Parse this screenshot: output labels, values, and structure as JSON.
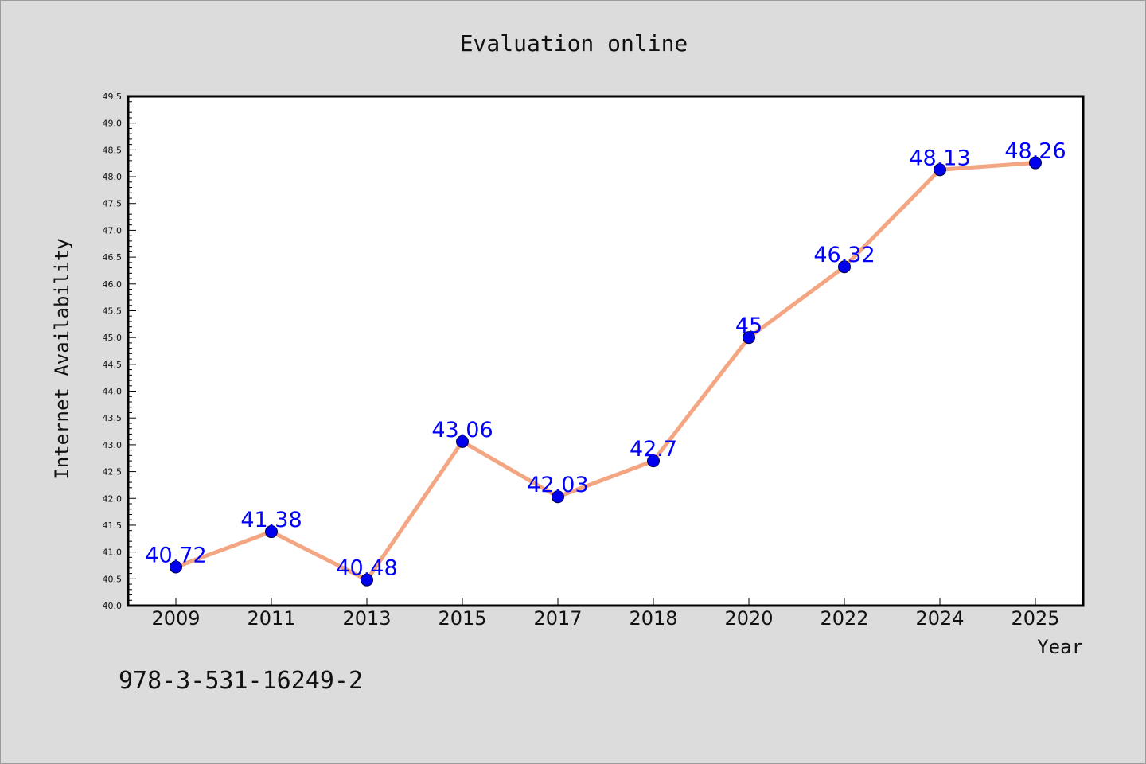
{
  "chart_data": {
    "type": "line",
    "title": "Evaluation online",
    "xlabel": "Year",
    "ylabel": "Internet Availability",
    "categories": [
      "2009",
      "2011",
      "2013",
      "2015",
      "2017",
      "2018",
      "2020",
      "2022",
      "2024",
      "2025"
    ],
    "values": [
      40.72,
      41.38,
      40.48,
      43.06,
      42.03,
      42.7,
      45,
      46.32,
      48.13,
      48.26
    ],
    "data_labels": [
      "40.72",
      "41.38",
      "40.48",
      "43.06",
      "42.03",
      "42.7",
      "45",
      "46.32",
      "48.13",
      "48.26"
    ],
    "ylim": [
      40.0,
      49.5
    ],
    "y_tick_labels": [
      "40.0",
      "40.5",
      "41.0",
      "41.5",
      "42.0",
      "42.5",
      "43.0",
      "43.5",
      "44.0",
      "44.5",
      "45.0",
      "45.5",
      "46.0",
      "46.5",
      "47.0",
      "47.5",
      "48.0",
      "48.5",
      "49.0",
      "49.5"
    ],
    "grid": false,
    "legend": "none",
    "colors": {
      "line": "#f4a582",
      "marker": "#0000ee",
      "data_label": "#0000ff",
      "plot_background": "#ffffff",
      "page_background": "#dcdcdc"
    }
  },
  "footer_text": "978-3-531-16249-2"
}
